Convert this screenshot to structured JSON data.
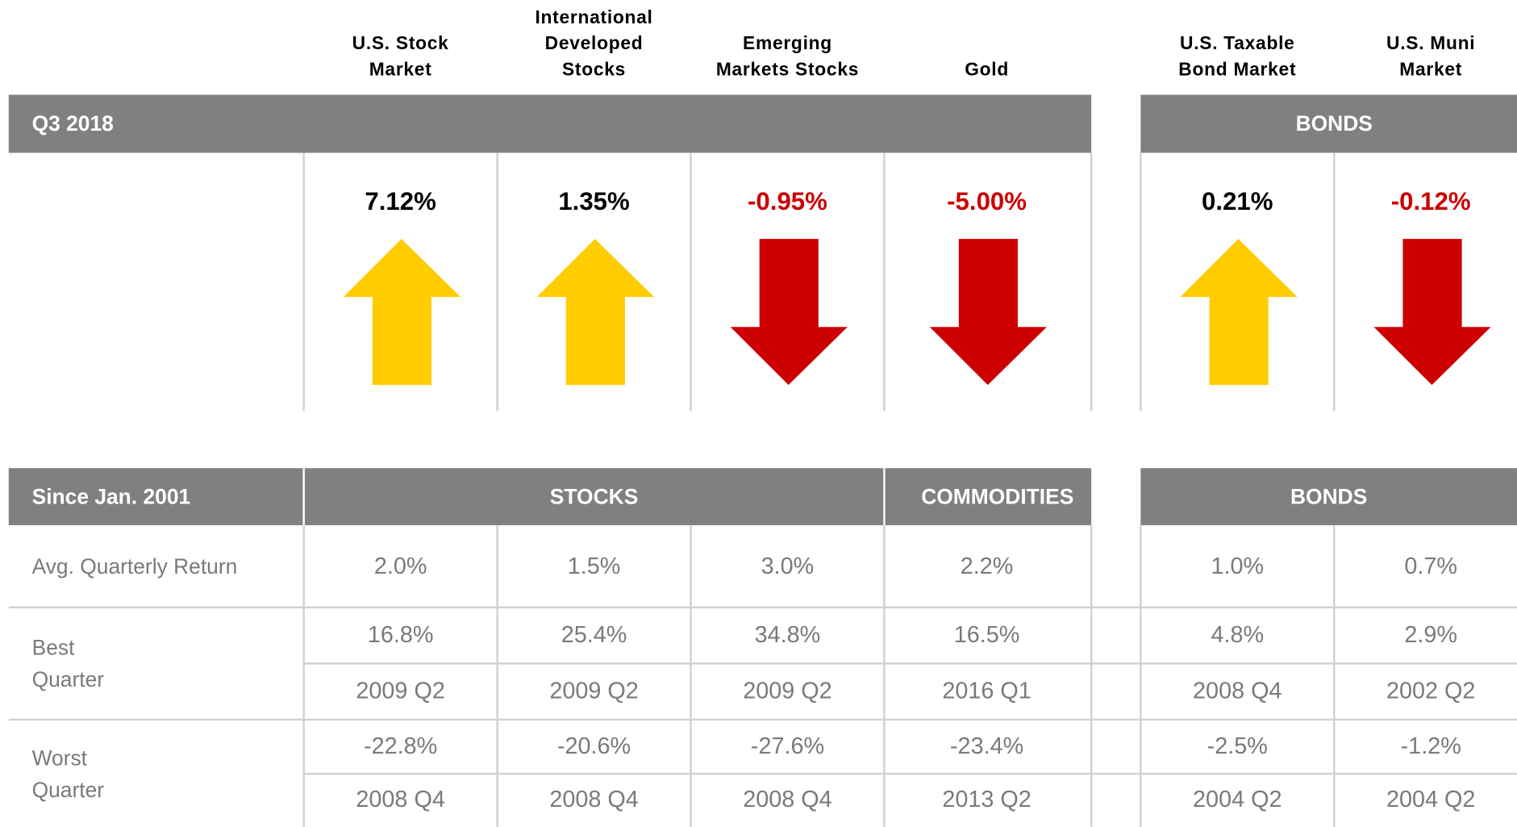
{
  "columns": [
    "U.S. Stock Market",
    "International Developed Stocks",
    "Emerging Markets Stocks",
    "Gold",
    "U.S. Taxable Bond Market",
    "U.S. Muni Market"
  ],
  "q3": {
    "label": "Q3 2018",
    "group": "BONDS",
    "returns": [
      "7.12%",
      "1.35%",
      "-0.95%",
      "-5.00%",
      "0.21%",
      "-0.12%"
    ]
  },
  "since": {
    "label": "Since Jan. 2001",
    "groups": [
      "STOCKS",
      "COMMODITIES",
      "BONDS"
    ],
    "rows": [
      {
        "label": "Avg. Quarterly Return",
        "values": [
          "2.0%",
          "1.5%",
          "3.0%",
          "2.2%",
          "1.0%",
          "0.7%"
        ]
      },
      {
        "label": "Best Quarter",
        "values": [
          "16.8%",
          "25.4%",
          "34.8%",
          "16.5%",
          "4.8%",
          "2.9%"
        ],
        "dates": [
          "2009 Q2",
          "2009 Q2",
          "2009 Q2",
          "2016 Q1",
          "2008 Q4",
          "2002 Q2"
        ]
      },
      {
        "label": "Worst Quarter",
        "values": [
          "-22.8%",
          "-20.6%",
          "-27.6%",
          "-23.4%",
          "-2.5%",
          "-1.2%"
        ],
        "dates": [
          "2008 Q4",
          "2008 Q4",
          "2008 Q4",
          "2013 Q2",
          "2004 Q2",
          "2004 Q2"
        ]
      }
    ]
  }
}
